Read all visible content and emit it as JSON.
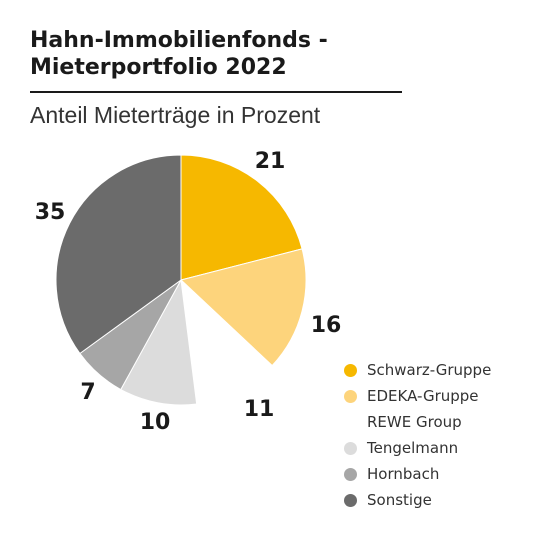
{
  "title_line1": "Hahn-Immobilienfonds -",
  "title_line2": "Mieterportfolio 2022",
  "subtitle": "Anteil Mieterträge in Prozent",
  "chart_data": {
    "type": "pie",
    "title": "Hahn-Immobilienfonds - Mieterportfolio 2022",
    "subtitle": "Anteil Mieterträge in Prozent",
    "start": "12 o'clock",
    "direction": "clockwise",
    "slices": [
      {
        "value": 21,
        "color": "#f6b800"
      },
      {
        "value": 16,
        "color": "#fdd47c"
      },
      {
        "value": 11,
        "color": "#ffffff"
      },
      {
        "value": 10,
        "color": "#dcdcdc"
      },
      {
        "value": 7,
        "color": "#a6a6a6"
      },
      {
        "value": 35,
        "color": "#6b6b6b"
      }
    ],
    "legend": {
      "placement": "bottom-right",
      "entries": [
        {
          "label": "Schwarz-Gruppe",
          "color": "#f6b800"
        },
        {
          "label": "EDEKA-Gruppe",
          "color": "#fdd47c"
        },
        {
          "label": "REWE Group",
          "color": "#ffffff"
        },
        {
          "label": "Tengelmann",
          "color": "#dcdcdc"
        },
        {
          "label": "Hornbach",
          "color": "#a6a6a6"
        },
        {
          "label": "Sonstige",
          "color": "#6b6b6b"
        }
      ]
    }
  }
}
